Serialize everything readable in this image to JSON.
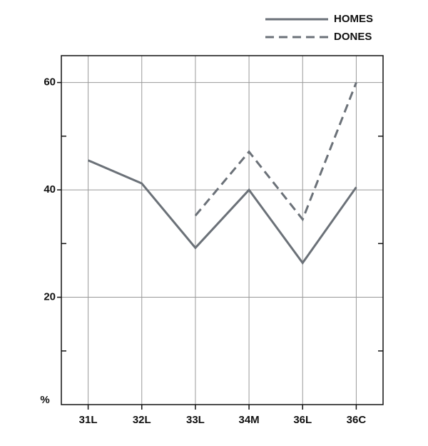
{
  "chart_data": {
    "type": "line",
    "y_label": "%",
    "categories": [
      "31L",
      "32L",
      "33L",
      "34M",
      "36L",
      "36C"
    ],
    "series": [
      {
        "name": "HOMES",
        "color": "#6b7178",
        "dash": false,
        "values": [
          45.5,
          41.2,
          29.2,
          40,
          26.4,
          40.5
        ]
      },
      {
        "name": "DONES",
        "color": "#6b7178",
        "dash": true,
        "values": [
          null,
          null,
          35.2,
          47.1,
          34.5,
          60
        ]
      }
    ],
    "ylim": [
      0,
      65
    ],
    "yticks": [
      20,
      40,
      60
    ],
    "minor_yticks": [
      10,
      30,
      50
    ],
    "grid": true,
    "legend": "top-right"
  }
}
